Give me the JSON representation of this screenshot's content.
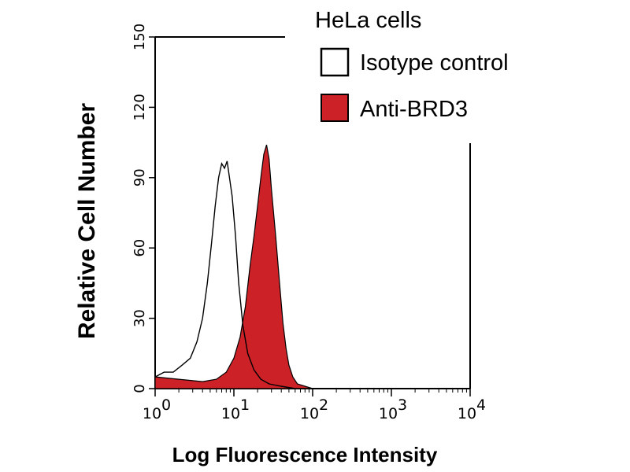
{
  "chart_data": {
    "type": "area",
    "title": "HeLa cells",
    "xlabel": "Log Fluorescence Intensity",
    "ylabel": "Relative Cell Number",
    "x_scale": "log",
    "xlim": [
      1,
      10000
    ],
    "ylim": [
      0,
      150
    ],
    "x_ticks": [
      {
        "base": "10",
        "exp": "0"
      },
      {
        "base": "10",
        "exp": "1"
      },
      {
        "base": "10",
        "exp": "2"
      },
      {
        "base": "10",
        "exp": "3"
      },
      {
        "base": "10",
        "exp": "4"
      }
    ],
    "y_ticks": [
      "0",
      "30",
      "60",
      "90",
      "120",
      "150"
    ],
    "legend_placement": "top-right",
    "series": [
      {
        "name": "Isotype control",
        "style": "outline",
        "color": "#000000",
        "x": [
          1.0,
          1.3,
          1.7,
          2.2,
          2.8,
          3.4,
          4.0,
          4.6,
          5.2,
          5.8,
          6.4,
          7.0,
          7.6,
          8.2,
          8.8,
          9.5,
          10.5,
          11.5,
          13.0,
          15.0,
          18.0,
          22.0,
          28.0,
          40.0,
          60.0,
          100.0,
          10000.0
        ],
        "y": [
          5,
          7,
          7,
          10,
          13,
          20,
          30,
          45,
          62,
          78,
          90,
          96,
          94,
          97,
          90,
          82,
          65,
          45,
          27,
          15,
          8,
          4,
          2,
          1,
          0,
          0,
          0
        ]
      },
      {
        "name": "Anti-BRD3",
        "style": "filled",
        "color": "#cc2127",
        "x": [
          1.0,
          2.0,
          4.0,
          6.0,
          8.0,
          10.0,
          12.0,
          14.0,
          16.0,
          18.0,
          20.0,
          22.0,
          24.0,
          26.0,
          28.0,
          30.0,
          34.0,
          38.0,
          42.0,
          46.0,
          50.0,
          56.0,
          64.0,
          80.0,
          100.0,
          10000.0
        ],
        "y": [
          5,
          4,
          3,
          4,
          7,
          13,
          22,
          35,
          52,
          65,
          78,
          90,
          100,
          104,
          98,
          85,
          65,
          45,
          28,
          17,
          10,
          5,
          2,
          1,
          0,
          0
        ]
      }
    ]
  }
}
